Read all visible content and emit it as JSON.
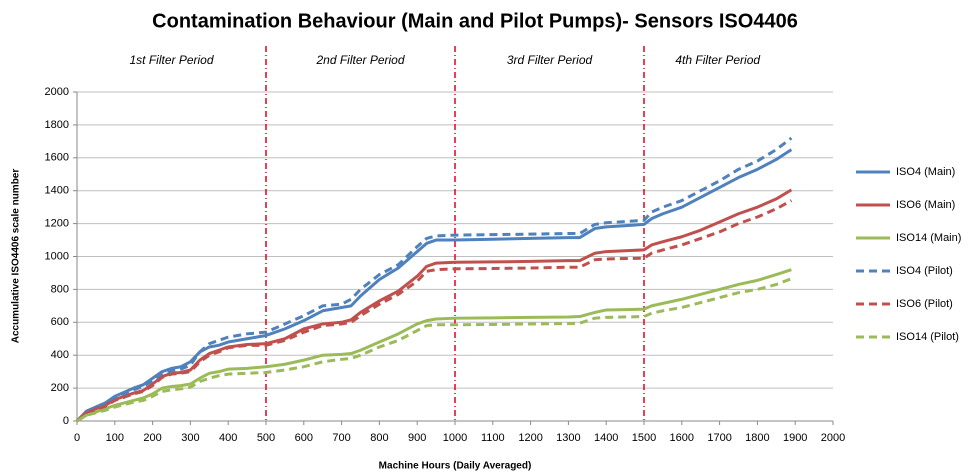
{
  "chart_data": {
    "type": "line",
    "title": "Contamination Behaviour (Main and Pilot Pumps)- Sensors ISO4406",
    "x_label": "Machine Hours (Daily Averaged)",
    "y_label": "Accumulative ISO4406 scale number",
    "annotations": [
      "1st Filter Period",
      "2nd Filter Period",
      "3rd Filter Period",
      "4th Filter Period"
    ],
    "period_lines": [
      500,
      1000,
      1500
    ],
    "period_line_color": "#e3001b",
    "x": [
      0,
      25,
      50,
      75,
      100,
      125,
      150,
      175,
      200,
      225,
      250,
      275,
      300,
      325,
      350,
      375,
      400,
      450,
      500,
      550,
      600,
      650,
      700,
      725,
      750,
      800,
      850,
      900,
      925,
      950,
      1000,
      1100,
      1200,
      1300,
      1330,
      1370,
      1400,
      1500,
      1520,
      1550,
      1600,
      1650,
      1700,
      1750,
      1800,
      1850,
      1890
    ],
    "series": [
      {
        "name": "ISO4 (Main)",
        "color": "#4f81bd",
        "style": "solid",
        "values": [
          0,
          60,
          85,
          110,
          150,
          175,
          200,
          220,
          260,
          300,
          320,
          330,
          360,
          420,
          450,
          460,
          480,
          500,
          520,
          560,
          610,
          670,
          690,
          700,
          760,
          860,
          930,
          1030,
          1080,
          1100,
          1100,
          1105,
          1110,
          1115,
          1115,
          1170,
          1180,
          1195,
          1230,
          1260,
          1300,
          1360,
          1420,
          1480,
          1530,
          1590,
          1650
        ]
      },
      {
        "name": "ISO6 (Main)",
        "color": "#c0504d",
        "style": "solid",
        "values": [
          0,
          55,
          75,
          95,
          130,
          150,
          170,
          185,
          225,
          270,
          290,
          295,
          310,
          370,
          410,
          430,
          450,
          465,
          470,
          500,
          560,
          590,
          600,
          615,
          660,
          730,
          790,
          880,
          940,
          960,
          965,
          967,
          970,
          975,
          975,
          1020,
          1030,
          1040,
          1070,
          1090,
          1120,
          1160,
          1210,
          1260,
          1300,
          1350,
          1405
        ]
      },
      {
        "name": "ISO14 (Main)",
        "color": "#9bbb59",
        "style": "solid",
        "values": [
          0,
          35,
          55,
          75,
          95,
          110,
          125,
          140,
          165,
          200,
          210,
          215,
          225,
          260,
          290,
          300,
          315,
          320,
          330,
          345,
          370,
          400,
          405,
          410,
          430,
          480,
          530,
          590,
          610,
          620,
          625,
          627,
          630,
          632,
          635,
          660,
          675,
          680,
          700,
          715,
          740,
          770,
          800,
          830,
          855,
          890,
          920
        ]
      },
      {
        "name": "ISO4 (Pilot)",
        "color": "#4f81bd",
        "style": "dashed",
        "values": [
          0,
          55,
          80,
          105,
          140,
          165,
          190,
          210,
          245,
          290,
          305,
          315,
          340,
          420,
          470,
          490,
          510,
          530,
          540,
          590,
          640,
          700,
          710,
          740,
          800,
          890,
          950,
          1060,
          1110,
          1125,
          1130,
          1133,
          1136,
          1140,
          1140,
          1195,
          1205,
          1220,
          1270,
          1300,
          1340,
          1400,
          1460,
          1530,
          1580,
          1650,
          1720
        ]
      },
      {
        "name": "ISO6 (Pilot)",
        "color": "#c0504d",
        "style": "dashed",
        "values": [
          0,
          50,
          70,
          90,
          125,
          145,
          165,
          180,
          215,
          265,
          285,
          290,
          300,
          360,
          400,
          420,
          445,
          460,
          460,
          490,
          540,
          580,
          590,
          600,
          640,
          710,
          770,
          850,
          910,
          920,
          925,
          927,
          930,
          935,
          935,
          980,
          985,
          990,
          1020,
          1040,
          1070,
          1110,
          1150,
          1200,
          1240,
          1290,
          1340
        ]
      },
      {
        "name": "ISO14 (Pilot)",
        "color": "#9bbb59",
        "style": "dashed",
        "values": [
          0,
          35,
          50,
          65,
          85,
          100,
          115,
          125,
          150,
          180,
          190,
          195,
          205,
          240,
          260,
          275,
          285,
          290,
          295,
          310,
          330,
          360,
          375,
          380,
          400,
          450,
          490,
          550,
          580,
          585,
          585,
          587,
          590,
          592,
          595,
          625,
          630,
          635,
          655,
          670,
          690,
          720,
          750,
          780,
          800,
          830,
          865
        ]
      }
    ],
    "xlim": [
      0,
      2000
    ],
    "xticks": [
      0,
      100,
      200,
      300,
      400,
      500,
      600,
      700,
      800,
      900,
      1000,
      1100,
      1200,
      1300,
      1400,
      1500,
      1600,
      1700,
      1800,
      1900,
      2000
    ],
    "ylim": [
      0,
      2000
    ],
    "yticks": [
      0,
      200,
      400,
      600,
      800,
      1000,
      1200,
      1400,
      1600,
      1800,
      2000
    ],
    "grid": true,
    "legend": "right"
  }
}
